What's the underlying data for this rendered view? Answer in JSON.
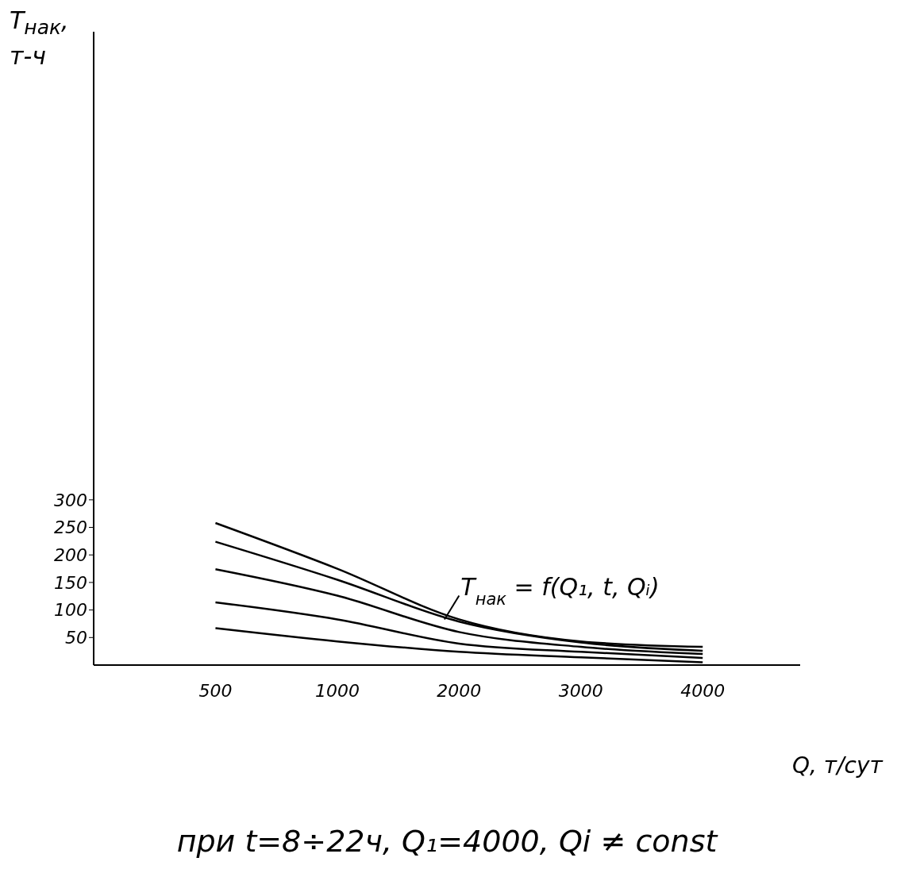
{
  "chart_data": {
    "type": "line",
    "xlabel": "Q, т/сут",
    "ylabel": "T$_{нак}$,\nт-ч",
    "categories": [
      "500",
      "1000",
      "2000",
      "3000",
      "4000"
    ],
    "series": [
      {
        "color": "#000000",
        "values": [
          258,
          175,
          83,
          43,
          33
        ]
      },
      {
        "color": "#000000",
        "values": [
          224,
          155,
          79,
          41,
          26
        ]
      },
      {
        "color": "#000000",
        "values": [
          174,
          126,
          60,
          33,
          20
        ]
      },
      {
        "color": "#000000",
        "values": [
          114,
          83,
          39,
          24,
          13
        ]
      },
      {
        "color": "#000000",
        "values": [
          67,
          43,
          24,
          14,
          5
        ]
      }
    ],
    "ylim": [
      0,
      1150
    ],
    "yticks": [
      50,
      100,
      150,
      200,
      250,
      300
    ],
    "grid": false,
    "marker": "none",
    "line_style": "solid",
    "annotations": [
      {
        "text": "T$_{нак}$ = f(Q₁, t, Qᵢ)",
        "x": "2000",
        "y": 79
      },
      "при  t=8÷22ч, Q₁=4000, Qi ≠ const"
    ]
  }
}
